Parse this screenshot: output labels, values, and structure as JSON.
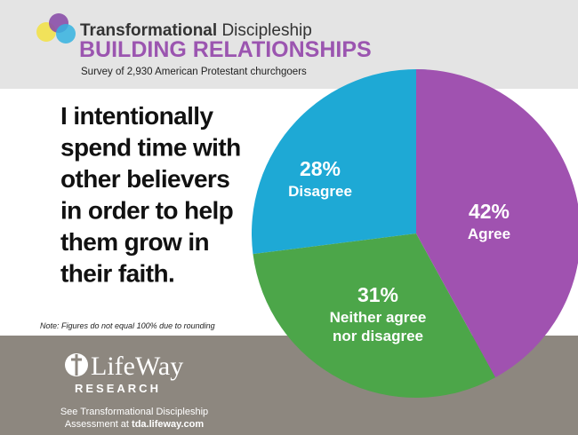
{
  "header": {
    "brand_bold": "Transformational",
    "brand": "Discipleship"
  },
  "chart_data": {
    "type": "pie",
    "title": "BUILDING RELATIONSHIPS",
    "subtitle": "Survey of 2,930 American Protestant churchgoers",
    "question": [
      "I intentionally",
      "spend time with",
      "other believers",
      "in order to help",
      "them grow in",
      "their faith."
    ],
    "categories": [
      "Agree",
      "Neither agree nor disagree",
      "Disagree"
    ],
    "values": [
      42,
      31,
      28
    ],
    "value_labels": [
      "42%",
      "31%",
      "28%"
    ],
    "colors": [
      "#a052b0",
      "#4ca649",
      "#1ea9d5"
    ],
    "note": "Note: Figures do not equal 100% due to rounding"
  },
  "footer": {
    "logo": "LifeWay",
    "logo_sub": "RESEARCH",
    "line1": "See Transformational Discipleship",
    "line2": "Assessment at",
    "link": "tda.lifeway.com"
  }
}
